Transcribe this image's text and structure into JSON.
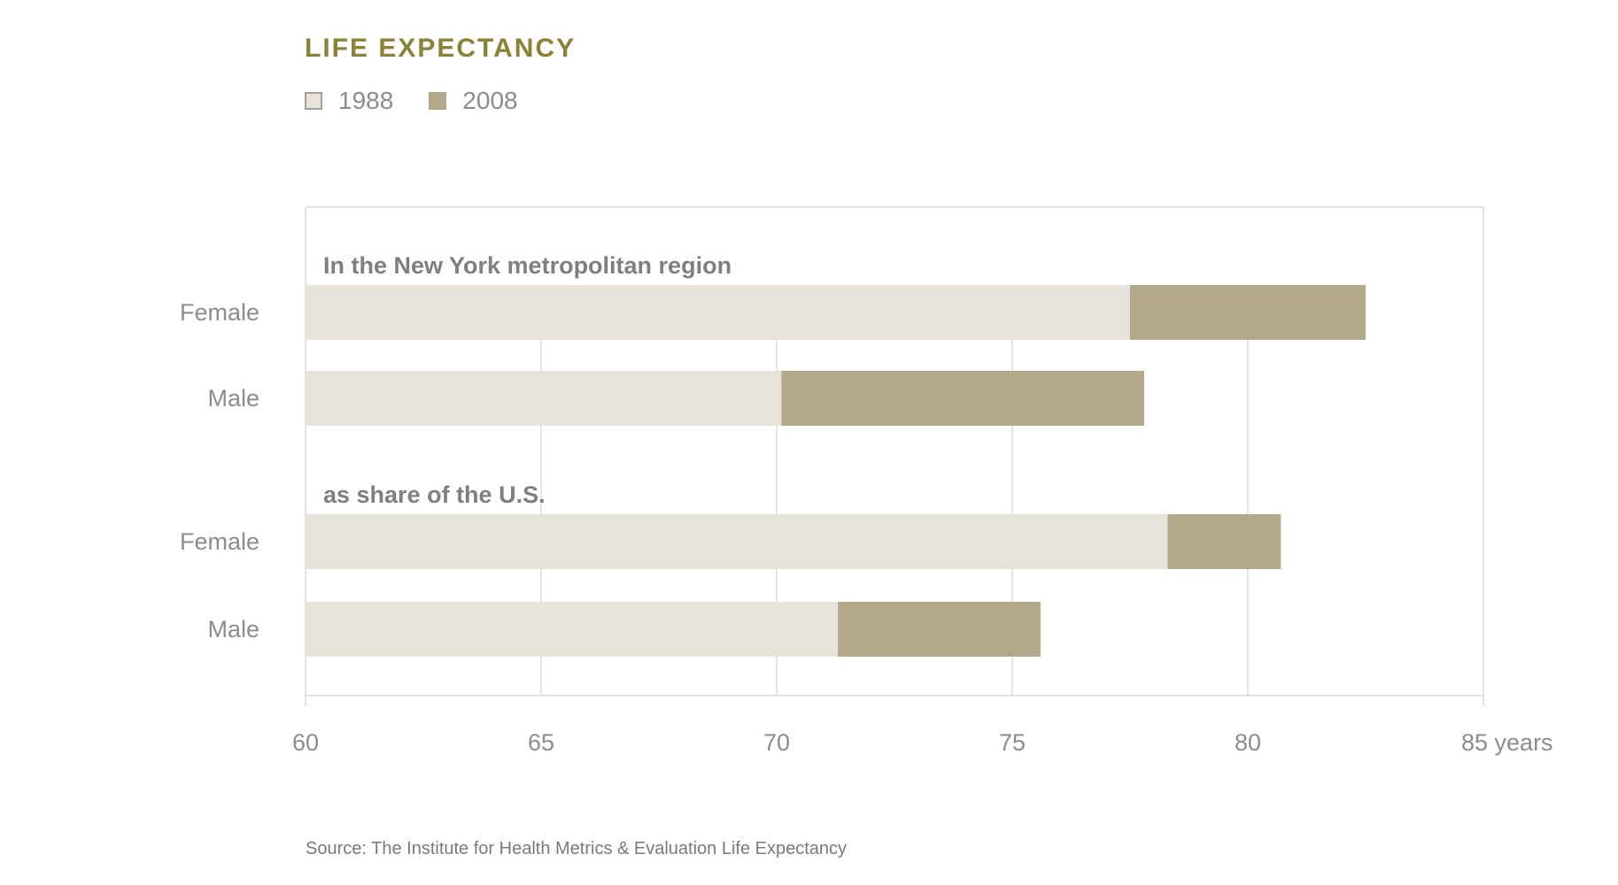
{
  "title": "LIFE EXPECTANCY",
  "legend": [
    {
      "label": "1988",
      "color": "#e7e3db"
    },
    {
      "label": "2008",
      "color": "#b3a889"
    }
  ],
  "source": "Source: The Institute for Health Metrics & Evaluation Life Expectancy",
  "colors": {
    "title": "#8a8236",
    "bar_1988": "#e7e3db",
    "bar_2008": "#b3a889",
    "grid": "#e3e3e3",
    "label": "#8c8c8c",
    "group_label": "#7f7f7f"
  },
  "chart_data": {
    "type": "bar",
    "orientation": "horizontal",
    "stacked": "overlay",
    "xlim": [
      60,
      85
    ],
    "x_ticks": [
      "60",
      "65",
      "70",
      "75",
      "80",
      "85 years"
    ],
    "grid": true,
    "legend_position": "top-left",
    "series": [
      {
        "name": "1988",
        "values": [
          77.5,
          70.1,
          78.3,
          71.3
        ]
      },
      {
        "name": "2008",
        "values": [
          82.5,
          77.8,
          80.7,
          75.6
        ]
      }
    ],
    "groups": [
      {
        "label": "In the New York metropolitan region",
        "categories": [
          "Female",
          "Male"
        ],
        "indices": [
          0,
          1
        ]
      },
      {
        "label": "as share of the U.S.",
        "categories": [
          "Female",
          "Male"
        ],
        "indices": [
          2,
          3
        ]
      }
    ],
    "categories": [
      "Female",
      "Male",
      "Female",
      "Male"
    ]
  }
}
